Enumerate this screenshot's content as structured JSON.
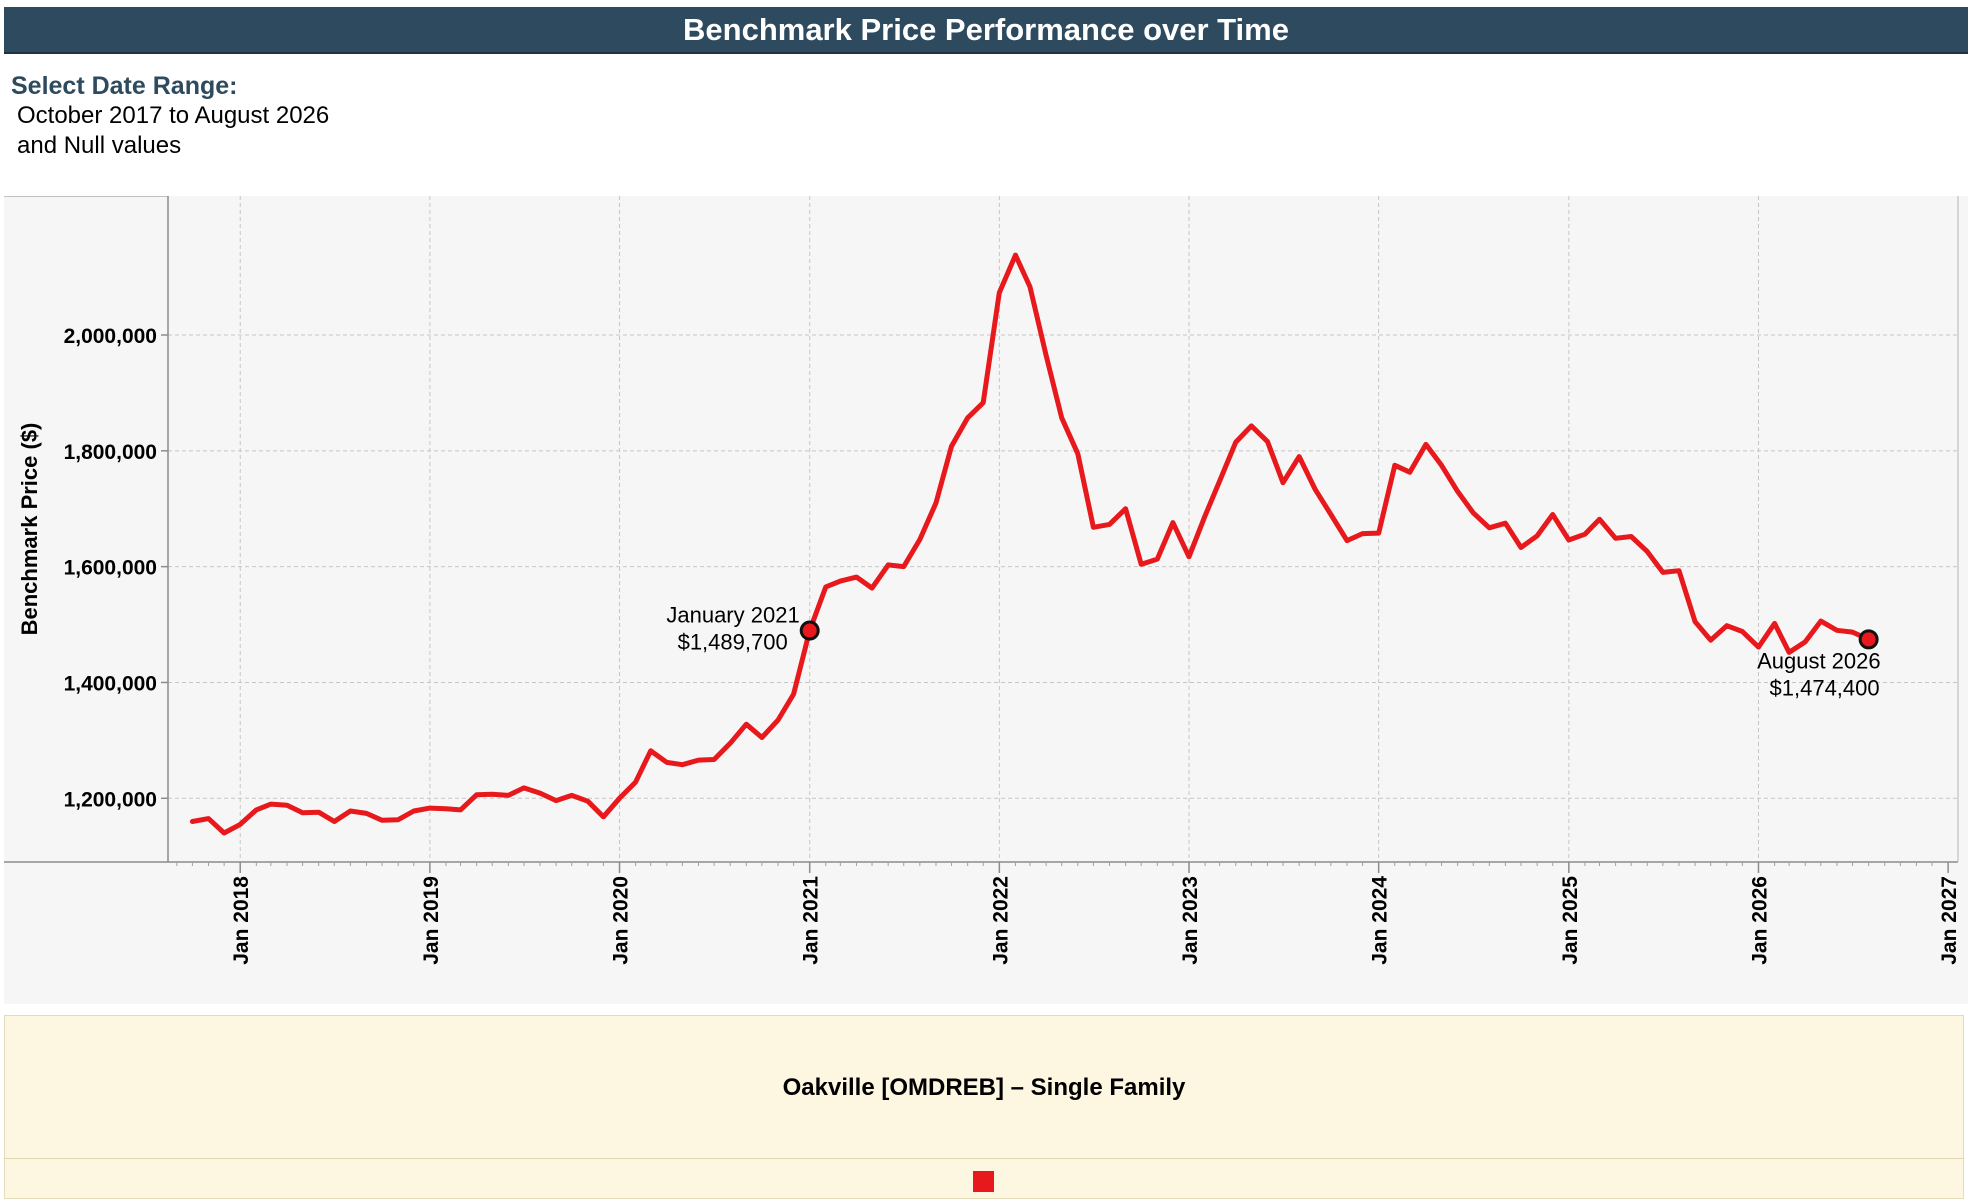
{
  "header": {
    "title": "Benchmark Price Performance over Time"
  },
  "filter": {
    "label": "Select Date Range:",
    "line1": "October 2017 to August 2026",
    "line2": "and Null values"
  },
  "legend": {
    "series_name": "Oakville [OMDREB] – Single Family",
    "swatch_color": "#e8191c"
  },
  "colors": {
    "header_bg": "#2e4a5e",
    "plot_bg": "#f6f6f6",
    "grid": "#c9c9c9",
    "line": "#e8191c",
    "legend_bg": "#fdf6e0"
  },
  "chart_data": {
    "type": "line",
    "ylabel": "Benchmark Price ($)",
    "ylim": [
      1090000,
      2240000
    ],
    "yticks": [
      1200000,
      1400000,
      1600000,
      1800000,
      2000000
    ],
    "ytick_labels": [
      "1,200,000",
      "1,400,000",
      "1,600,000",
      "1,800,000",
      "2,000,000"
    ],
    "xlim": [
      "2017-08-15",
      "2027-01-20"
    ],
    "xticks": [
      "2018-01",
      "2019-01",
      "2020-01",
      "2021-01",
      "2022-01",
      "2023-01",
      "2024-01",
      "2025-01",
      "2026-01",
      "2027-01"
    ],
    "xtick_labels": [
      "Jan 2018",
      "Jan 2019",
      "Jan 2020",
      "Jan 2021",
      "Jan 2022",
      "Jan 2023",
      "Jan 2024",
      "Jan 2025",
      "Jan 2026",
      "Jan 2027"
    ],
    "grid": true,
    "series": [
      {
        "name": "Oakville [OMDREB] – Single Family",
        "color": "#e8191c",
        "x": [
          "2017-10",
          "2017-11",
          "2017-12",
          "2018-01",
          "2018-02",
          "2018-03",
          "2018-04",
          "2018-05",
          "2018-06",
          "2018-07",
          "2018-08",
          "2018-09",
          "2018-10",
          "2018-11",
          "2018-12",
          "2019-01",
          "2019-02",
          "2019-03",
          "2019-04",
          "2019-05",
          "2019-06",
          "2019-07",
          "2019-08",
          "2019-09",
          "2019-10",
          "2019-11",
          "2019-12",
          "2020-01",
          "2020-02",
          "2020-03",
          "2020-04",
          "2020-05",
          "2020-06",
          "2020-07",
          "2020-08",
          "2020-09",
          "2020-10",
          "2020-11",
          "2020-12",
          "2021-01",
          "2021-02",
          "2021-03",
          "2021-04",
          "2021-05",
          "2021-06",
          "2021-07",
          "2021-08",
          "2021-09",
          "2021-10",
          "2021-11",
          "2021-12",
          "2022-01",
          "2022-02",
          "2022-03",
          "2022-04",
          "2022-05",
          "2022-06",
          "2022-07",
          "2022-08",
          "2022-09",
          "2022-10",
          "2022-11",
          "2022-12",
          "2023-01",
          "2023-02",
          "2023-03",
          "2023-04",
          "2023-05",
          "2023-06",
          "2023-07",
          "2023-08",
          "2023-09",
          "2023-10",
          "2023-11",
          "2023-12",
          "2024-01",
          "2024-02",
          "2024-03",
          "2024-04",
          "2024-05",
          "2024-06",
          "2024-07",
          "2024-08",
          "2024-09",
          "2024-10",
          "2024-11",
          "2024-12",
          "2025-01",
          "2025-02",
          "2025-03",
          "2025-04",
          "2025-05",
          "2025-06",
          "2025-07",
          "2025-08",
          "2025-09",
          "2025-10",
          "2025-11",
          "2025-12",
          "2026-01",
          "2026-02",
          "2026-03",
          "2026-04",
          "2026-05",
          "2026-06",
          "2026-07",
          "2026-08"
        ],
        "values": [
          1160000,
          1165000,
          1140000,
          1155000,
          1180000,
          1190000,
          1188000,
          1175000,
          1176000,
          1160000,
          1178000,
          1174000,
          1162000,
          1163000,
          1178000,
          1183000,
          1182000,
          1180000,
          1206000,
          1207000,
          1205000,
          1218000,
          1209000,
          1196000,
          1205000,
          1195000,
          1168000,
          1200000,
          1228000,
          1282000,
          1262000,
          1258000,
          1266000,
          1267000,
          1295000,
          1328000,
          1305000,
          1335000,
          1380000,
          1489700,
          1565000,
          1575000,
          1582000,
          1563000,
          1603000,
          1600000,
          1647000,
          1710000,
          1808000,
          1857000,
          1883000,
          2073000,
          2138000,
          2083000,
          1965000,
          1857000,
          1795000,
          1668000,
          1673000,
          1700000,
          1604000,
          1613000,
          1676000,
          1617000,
          1688000,
          1748000,
          1815000,
          1843000,
          1816000,
          1745000,
          1790000,
          1733000,
          1690000,
          1645000,
          1657000,
          1658000,
          1775000,
          1763000,
          1811000,
          1775000,
          1730000,
          1693000,
          1667000,
          1675000,
          1633000,
          1653000,
          1690000,
          1646000,
          1656000,
          1682000,
          1649000,
          1652000,
          1626000,
          1590000,
          1593000,
          1505000,
          1473000,
          1498000,
          1488000,
          1461000,
          1502000,
          1452000,
          1470000,
          1506000,
          1490000,
          1487000,
          1474400
        ]
      }
    ],
    "annotations": [
      {
        "x": "2021-01",
        "y": 1489700,
        "line1": "January 2021",
        "line2": "$1,489,700"
      },
      {
        "x": "2026-08",
        "y": 1474400,
        "line1": "August 2026",
        "line2": "$1,474,400"
      }
    ]
  }
}
